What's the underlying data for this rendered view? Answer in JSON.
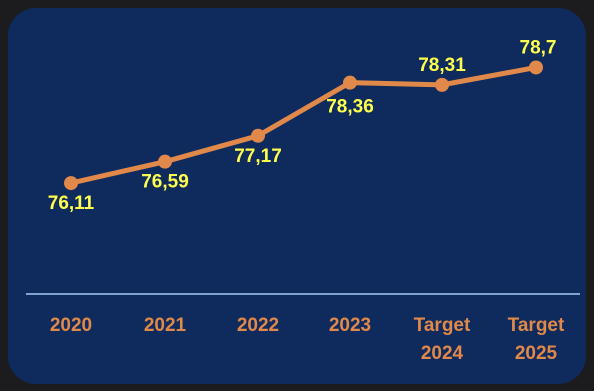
{
  "chart_data": {
    "type": "line",
    "categories": [
      [
        "2020"
      ],
      [
        "2021"
      ],
      [
        "2022"
      ],
      [
        "2023"
      ],
      [
        "Target",
        "2024"
      ],
      [
        "Target",
        "2025"
      ]
    ],
    "values": [
      76.11,
      76.59,
      77.17,
      78.36,
      78.31,
      78.7
    ],
    "value_labels": [
      "76,11",
      "76,59",
      "77,17",
      "78,36",
      "78,31",
      "78,7"
    ],
    "title": "",
    "xlabel": "",
    "ylabel": "",
    "ylim": [
      76.0,
      78.8
    ],
    "grid": false,
    "colors": {
      "background": "#0f2a5c",
      "line": "#e0894a",
      "point_labels": "#ffff4d",
      "category_labels": "#e0894a",
      "baseline": "#7fa2cf"
    }
  }
}
